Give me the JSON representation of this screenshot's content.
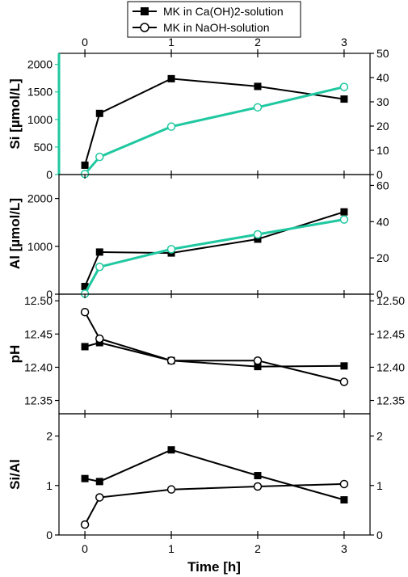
{
  "legend": [
    {
      "label": "MK in Ca(OH)2-solution",
      "marker": "filled-square"
    },
    {
      "label": "MK in NaOH-solution",
      "marker": "open-circle"
    }
  ],
  "xlabel": "Time [h]",
  "colors": {
    "ca": "#000000",
    "naoh_si_al": "#1fc8a0",
    "naoh_ph_ratio": "#000000",
    "left_axis_accent": "#1fc8a0"
  },
  "chart_data": [
    {
      "type": "line",
      "name": "si",
      "ylabel": "Si [µmol/L]",
      "xlim": [
        -0.3,
        3.3
      ],
      "ylim": [
        0,
        2200
      ],
      "yticks": [
        0,
        500,
        1000,
        1500,
        2000
      ],
      "right_ylim": [
        0,
        50
      ],
      "right_yticks": [
        0,
        10,
        20,
        30,
        40,
        50
      ],
      "x_top_ticks": [
        0,
        1,
        2,
        3
      ],
      "left_axis_color": "#1fc8a0",
      "series": [
        {
          "name": "MK in Ca(OH)2-solution",
          "x": [
            0,
            0.17,
            1,
            2,
            3
          ],
          "y": [
            170,
            1110,
            1740,
            1600,
            1370
          ]
        },
        {
          "name": "MK in NaOH-solution",
          "x": [
            0,
            0.17,
            1,
            2,
            3
          ],
          "y": [
            10,
            320,
            870,
            1220,
            1590
          ]
        }
      ]
    },
    {
      "type": "line",
      "name": "al",
      "ylabel": "Al [µmol/L]",
      "xlim": [
        -0.3,
        3.3
      ],
      "ylim": [
        0,
        2500
      ],
      "yticks": [
        0,
        1000,
        2000
      ],
      "right_ylim": [
        0,
        66
      ],
      "right_yticks": [
        0,
        20,
        40,
        60
      ],
      "series": [
        {
          "name": "MK in Ca(OH)2-solution",
          "x": [
            0,
            0.17,
            1,
            2,
            3
          ],
          "y": [
            160,
            880,
            860,
            1150,
            1720
          ]
        },
        {
          "name": "MK in NaOH-solution",
          "x": [
            0,
            0.17,
            1,
            2,
            3
          ],
          "y": [
            10,
            570,
            940,
            1250,
            1560
          ]
        }
      ]
    },
    {
      "type": "line",
      "name": "ph",
      "ylabel": "pH",
      "xlim": [
        -0.3,
        3.3
      ],
      "ylim": [
        12.33,
        12.51
      ],
      "yticks": [
        "12.35",
        "12.40",
        "12.45",
        "12.50"
      ],
      "right_yticks": [
        "12.35",
        "12.40",
        "12.45",
        "12.50"
      ],
      "series": [
        {
          "name": "MK in Ca(OH)2-solution",
          "x": [
            0,
            0.17,
            1,
            2,
            3
          ],
          "y": [
            12.431,
            12.437,
            12.41,
            12.401,
            12.402
          ]
        },
        {
          "name": "MK in NaOH-solution",
          "x": [
            0,
            0.17,
            1,
            2,
            3
          ],
          "y": [
            12.483,
            12.443,
            12.41,
            12.41,
            12.378
          ]
        }
      ]
    },
    {
      "type": "line",
      "name": "ratio",
      "ylabel": "Si/Al",
      "xlim": [
        -0.3,
        3.3
      ],
      "ylim": [
        0,
        2.45
      ],
      "yticks": [
        0,
        1,
        2
      ],
      "right_yticks": [
        0,
        1,
        2
      ],
      "x_bottom_ticks": [
        0,
        1,
        2,
        3
      ],
      "series": [
        {
          "name": "MK in Ca(OH)2-solution",
          "x": [
            0,
            0.17,
            1,
            2,
            3
          ],
          "y": [
            1.14,
            1.08,
            1.72,
            1.2,
            0.71
          ]
        },
        {
          "name": "MK in NaOH-solution",
          "x": [
            0,
            0.17,
            1,
            2,
            3
          ],
          "y": [
            0.21,
            0.76,
            0.92,
            0.98,
            1.03
          ]
        }
      ]
    }
  ]
}
